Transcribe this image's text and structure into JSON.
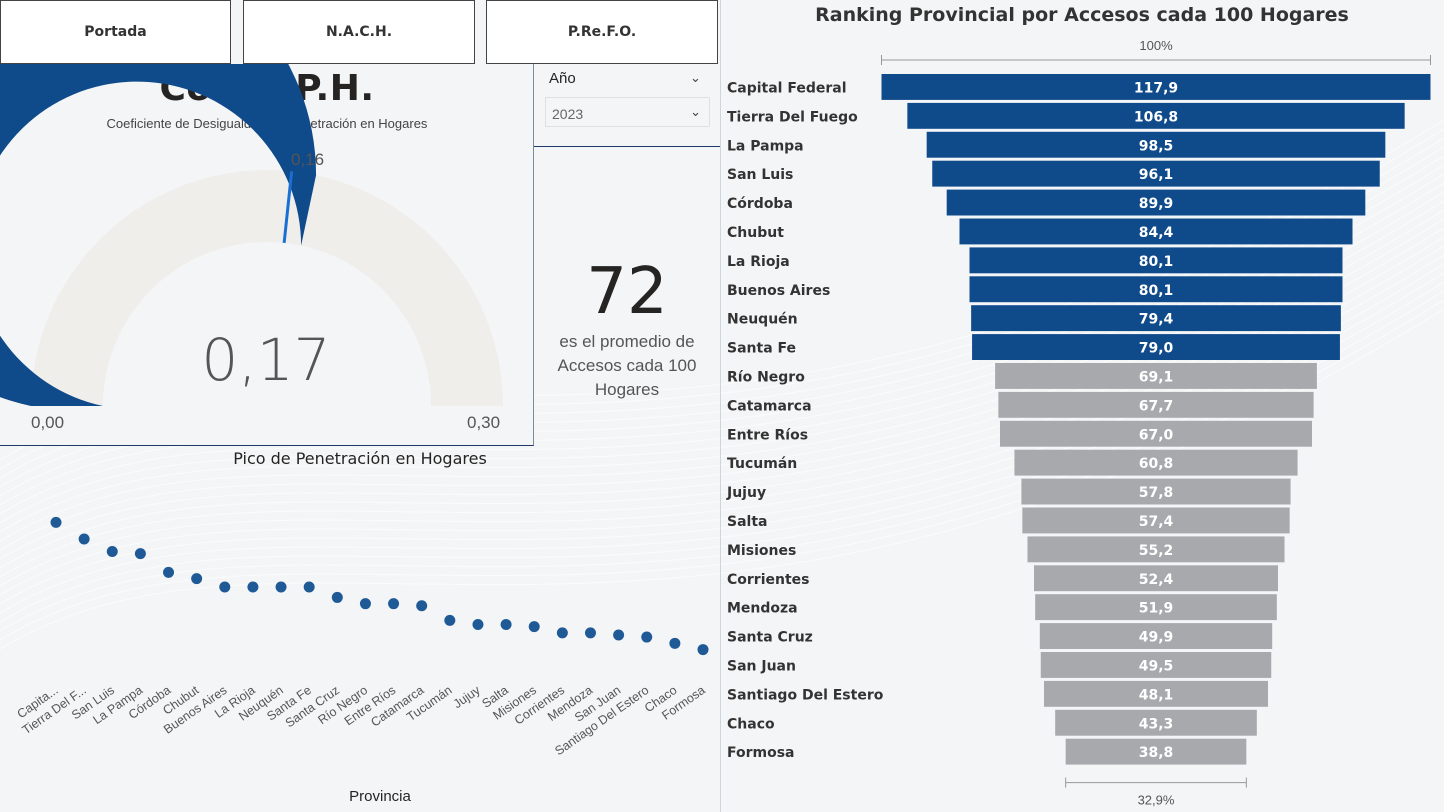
{
  "nav": {
    "portada": "Portada",
    "nach": "N.A.C.H.",
    "prefo": "P.Re.F.O."
  },
  "gauge": {
    "title": "Co.De.P.H.",
    "subtitle": "Coeficiente de Desigualdad de Penetración en Hogares",
    "value": "0,17",
    "min": "0,00",
    "max": "0,30",
    "target": "0,16",
    "value_num": 0.17,
    "target_num": 0.16,
    "min_num": 0,
    "max_num": 0.3,
    "fill_color": "#0f4a8a",
    "track_color": "#f0eeeb",
    "target_color": "#1a6fd4"
  },
  "slicer": {
    "label": "Año",
    "selected": "2023"
  },
  "kpi": {
    "value": "72",
    "caption": "es el promedio de Accesos cada 100 Hogares"
  },
  "dot_chart": {
    "title": "Pico de Penetración en Hogares",
    "x_label": "Provincia"
  },
  "funnel": {
    "title": "Ranking Provincial por Accesos cada 100 Hogares",
    "top_label": "100%",
    "bottom_label": "32,9%",
    "highlight_color": "#0f4a8a",
    "other_color": "#a8a9ad"
  },
  "chart_data": [
    {
      "type": "scatter",
      "title": "Pico de Penetración en Hogares",
      "xlabel": "Provincia",
      "ylabel": "",
      "categories": [
        "Capita...",
        "Tierra Del F...",
        "San Luis",
        "La Pampa",
        "Córdoba",
        "Chubut",
        "Buenos Aires",
        "La Rioja",
        "Neuquén",
        "Santa Fe",
        "Santa Cruz",
        "Río Negro",
        "Entre Ríos",
        "Catamarca",
        "Tucumán",
        "Jujuy",
        "Salta",
        "Misiones",
        "Corrientes",
        "Mendoza",
        "San Juan",
        "Santiago Del Estero",
        "Chaco",
        "Formosa"
      ],
      "values": [
        0.96,
        0.88,
        0.82,
        0.81,
        0.72,
        0.69,
        0.65,
        0.65,
        0.65,
        0.65,
        0.6,
        0.57,
        0.57,
        0.56,
        0.49,
        0.47,
        0.47,
        0.46,
        0.43,
        0.43,
        0.42,
        0.41,
        0.38,
        0.35
      ],
      "ylim": [
        0.3,
        1.0
      ],
      "grid": false,
      "legend": "none"
    },
    {
      "type": "bar",
      "title": "Ranking Provincial por Accesos cada 100 Hogares",
      "categories": [
        "Capital Federal",
        "Tierra Del Fuego",
        "La Pampa",
        "San Luis",
        "Córdoba",
        "Chubut",
        "La Rioja",
        "Buenos Aires",
        "Neuquén",
        "Santa Fe",
        "Río Negro",
        "Catamarca",
        "Entre Ríos",
        "Tucumán",
        "Jujuy",
        "Salta",
        "Misiones",
        "Corrientes",
        "Mendoza",
        "Santa Cruz",
        "San Juan",
        "Santiago Del Estero",
        "Chaco",
        "Formosa"
      ],
      "values": [
        117.9,
        106.8,
        98.5,
        96.1,
        89.9,
        84.4,
        80.1,
        80.1,
        79.4,
        79.0,
        69.1,
        67.7,
        67.0,
        60.8,
        57.8,
        57.4,
        55.2,
        52.4,
        51.9,
        49.9,
        49.5,
        48.1,
        43.3,
        38.8
      ],
      "value_labels": [
        "117,9",
        "106,8",
        "98,5",
        "96,1",
        "89,9",
        "84,4",
        "80,1",
        "80,1",
        "79,4",
        "79,0",
        "69,1",
        "67,7",
        "67,0",
        "60,8",
        "57,8",
        "57,4",
        "55,2",
        "52,4",
        "51,9",
        "49,9",
        "49,5",
        "48,1",
        "43,3",
        "38,8"
      ],
      "highlighted_top": 10,
      "xlim": [
        0,
        117.9
      ],
      "orientation": "funnel",
      "grid": false,
      "legend": "none"
    }
  ]
}
